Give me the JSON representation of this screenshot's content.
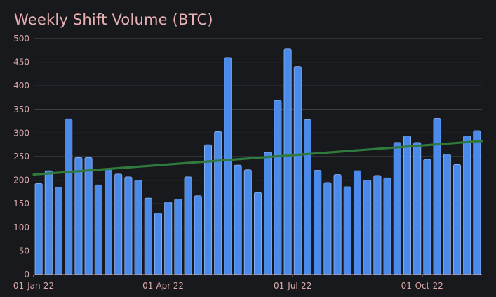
{
  "chart_data": {
    "type": "bar",
    "title": "Weekly Shift Volume (BTC)",
    "xlabel": "",
    "ylabel": "",
    "ylim": [
      0,
      500
    ],
    "yticks": [
      0,
      50,
      100,
      150,
      200,
      250,
      300,
      350,
      400,
      450,
      500
    ],
    "x_tick_labels": [
      {
        "label": "01-Jan-22",
        "index": -0.5
      },
      {
        "label": "01-Apr-22",
        "index": 12.5
      },
      {
        "label": "01-Jul-22",
        "index": 25.5
      },
      {
        "label": "01-Oct-22",
        "index": 38.5
      }
    ],
    "grid": true,
    "colors": {
      "bar": "#4a8aea",
      "bar_edge": "#8db5f2",
      "trend": "#2f7a3c",
      "grid": "#4a4b50",
      "axis": "#d9a9aa",
      "background": "#18191d"
    },
    "series": [
      {
        "name": "Weekly volume",
        "type": "bar",
        "values": [
          193,
          220,
          185,
          330,
          248,
          248,
          190,
          225,
          213,
          207,
          200,
          162,
          130,
          154,
          160,
          207,
          167,
          275,
          303,
          460,
          232,
          222,
          174,
          259,
          369,
          478,
          441,
          328,
          221,
          195,
          212,
          186,
          220,
          200,
          210,
          205,
          280,
          294,
          280,
          244,
          331,
          255,
          233,
          294,
          305
        ]
      },
      {
        "name": "Trend",
        "type": "line",
        "start_value": 212,
        "end_value": 283
      }
    ]
  }
}
